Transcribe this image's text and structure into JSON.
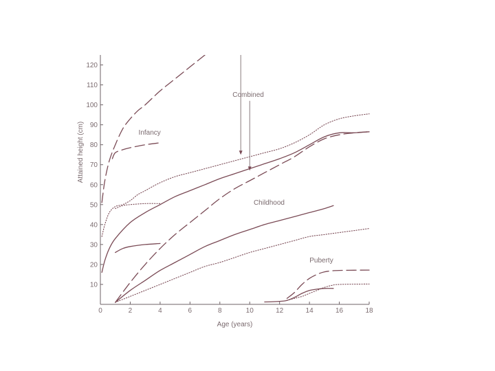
{
  "chart_data": {
    "type": "line",
    "xlabel": "Age (years)",
    "ylabel": "Attained height (cm)",
    "xlim": [
      0,
      18
    ],
    "ylim": [
      0,
      125
    ],
    "xticks": [
      0,
      2,
      4,
      6,
      8,
      10,
      12,
      14,
      16,
      18
    ],
    "yticks": [
      10,
      20,
      30,
      40,
      50,
      60,
      70,
      80,
      90,
      100,
      110,
      120
    ],
    "grid": false,
    "annotations": [
      {
        "text": "Combined",
        "x": 9.9,
        "y": 104
      },
      {
        "text": "Infancy",
        "x": 3.3,
        "y": 85
      },
      {
        "text": "Childhood",
        "x": 11.3,
        "y": 50
      },
      {
        "text": "Puberty",
        "x": 14.8,
        "y": 21
      }
    ],
    "arrows": [
      {
        "from": [
          9.4,
          125
        ],
        "to": [
          9.4,
          75
        ]
      },
      {
        "from": [
          10.0,
          102
        ],
        "to": [
          10.0,
          67
        ]
      }
    ],
    "series": [
      {
        "style": "dashed",
        "points": [
          [
            0.1,
            51
          ],
          [
            0.3,
            62
          ],
          [
            0.6,
            72
          ],
          [
            1,
            80
          ],
          [
            1.5,
            88
          ],
          [
            2,
            93
          ],
          [
            2.5,
            97
          ],
          [
            3,
            100
          ],
          [
            4,
            107
          ],
          [
            5,
            113
          ],
          [
            6,
            119
          ],
          [
            7,
            125
          ]
        ]
      },
      {
        "style": "dashed",
        "points": [
          [
            0.8,
            73
          ],
          [
            1,
            76
          ],
          [
            1.5,
            77.5
          ],
          [
            2,
            78.5
          ],
          [
            3,
            80
          ],
          [
            4,
            81
          ]
        ]
      },
      {
        "style": "dashed",
        "points": [
          [
            1,
            1
          ],
          [
            2,
            11
          ],
          [
            3,
            20
          ],
          [
            4,
            28
          ],
          [
            5,
            35
          ],
          [
            6,
            41
          ],
          [
            7,
            47
          ],
          [
            8,
            53
          ],
          [
            9,
            58
          ],
          [
            10,
            62
          ],
          [
            11,
            66
          ],
          [
            12,
            70
          ],
          [
            13,
            74
          ],
          [
            14,
            79
          ],
          [
            15,
            83
          ],
          [
            16,
            85
          ],
          [
            17,
            86
          ],
          [
            18,
            86.5
          ]
        ]
      },
      {
        "style": "dashed",
        "points": [
          [
            12.5,
            3
          ],
          [
            13,
            6
          ],
          [
            13.5,
            10
          ],
          [
            14,
            13
          ],
          [
            14.5,
            15
          ],
          [
            15,
            16.3
          ],
          [
            15.5,
            16.8
          ],
          [
            16,
            17
          ],
          [
            18,
            17.2
          ]
        ]
      },
      {
        "style": "solid",
        "points": [
          [
            0.1,
            16
          ],
          [
            0.3,
            22
          ],
          [
            0.6,
            28
          ],
          [
            1,
            33
          ],
          [
            2,
            41
          ],
          [
            3,
            46
          ],
          [
            4,
            50
          ],
          [
            5,
            54
          ],
          [
            6,
            57
          ],
          [
            7,
            60
          ],
          [
            8,
            63
          ],
          [
            9,
            65.5
          ],
          [
            10,
            68
          ],
          [
            11,
            70.5
          ],
          [
            12,
            73
          ],
          [
            13,
            76
          ],
          [
            14,
            80
          ],
          [
            15,
            84
          ],
          [
            16,
            86
          ],
          [
            17,
            86
          ],
          [
            18,
            86.5
          ]
        ]
      },
      {
        "style": "solid",
        "points": [
          [
            1,
            26
          ],
          [
            1.5,
            28
          ],
          [
            2,
            29
          ],
          [
            3,
            30
          ],
          [
            4,
            30.5
          ]
        ]
      },
      {
        "style": "solid",
        "points": [
          [
            1,
            1
          ],
          [
            2,
            7
          ],
          [
            3,
            12
          ],
          [
            4,
            17
          ],
          [
            5,
            21
          ],
          [
            6,
            25
          ],
          [
            7,
            29
          ],
          [
            8,
            32
          ],
          [
            9,
            35
          ],
          [
            10,
            37.5
          ],
          [
            11,
            40
          ],
          [
            12,
            42
          ],
          [
            13,
            44
          ],
          [
            14,
            46
          ],
          [
            15,
            48
          ],
          [
            15.6,
            49.5
          ]
        ]
      },
      {
        "style": "solid",
        "points": [
          [
            11,
            1.2
          ],
          [
            12,
            1.5
          ],
          [
            12.5,
            2
          ],
          [
            13,
            3.5
          ],
          [
            13.5,
            5.5
          ],
          [
            14,
            7
          ],
          [
            14.5,
            7.6
          ],
          [
            15,
            8
          ],
          [
            15.6,
            8
          ]
        ]
      },
      {
        "style": "dotted",
        "points": [
          [
            0.1,
            34
          ],
          [
            0.3,
            40
          ],
          [
            0.6,
            46
          ],
          [
            1,
            49
          ],
          [
            1.5,
            50
          ],
          [
            2,
            52
          ],
          [
            2.5,
            55
          ],
          [
            3,
            57
          ],
          [
            4,
            61
          ],
          [
            5,
            64
          ],
          [
            6,
            66
          ],
          [
            7,
            68
          ],
          [
            8,
            70
          ],
          [
            9,
            72
          ],
          [
            10,
            74
          ],
          [
            11,
            76
          ],
          [
            12,
            78
          ],
          [
            13,
            81
          ],
          [
            14,
            85
          ],
          [
            15,
            90
          ],
          [
            16,
            93
          ],
          [
            17,
            94.5
          ],
          [
            18,
            95.5
          ]
        ]
      },
      {
        "style": "dotted",
        "points": [
          [
            1,
            48
          ],
          [
            1.5,
            49.5
          ],
          [
            2,
            50
          ],
          [
            3,
            50.5
          ],
          [
            4,
            50.5
          ]
        ]
      },
      {
        "style": "dotted",
        "points": [
          [
            1,
            1
          ],
          [
            2,
            4
          ],
          [
            3,
            7
          ],
          [
            4,
            10
          ],
          [
            5,
            13
          ],
          [
            6,
            16
          ],
          [
            7,
            19
          ],
          [
            8,
            21
          ],
          [
            9,
            23.5
          ],
          [
            10,
            26
          ],
          [
            11,
            28
          ],
          [
            12,
            30
          ],
          [
            13,
            32
          ],
          [
            14,
            34
          ],
          [
            15,
            35
          ],
          [
            16,
            36
          ],
          [
            17,
            37
          ],
          [
            18,
            38
          ]
        ]
      },
      {
        "style": "dotted",
        "points": [
          [
            12.5,
            2
          ],
          [
            13,
            3
          ],
          [
            13.5,
            4
          ],
          [
            14,
            5.5
          ],
          [
            14.5,
            7
          ],
          [
            15,
            8.5
          ],
          [
            15.5,
            9.5
          ],
          [
            16,
            10
          ],
          [
            18,
            10.2
          ]
        ]
      }
    ]
  }
}
